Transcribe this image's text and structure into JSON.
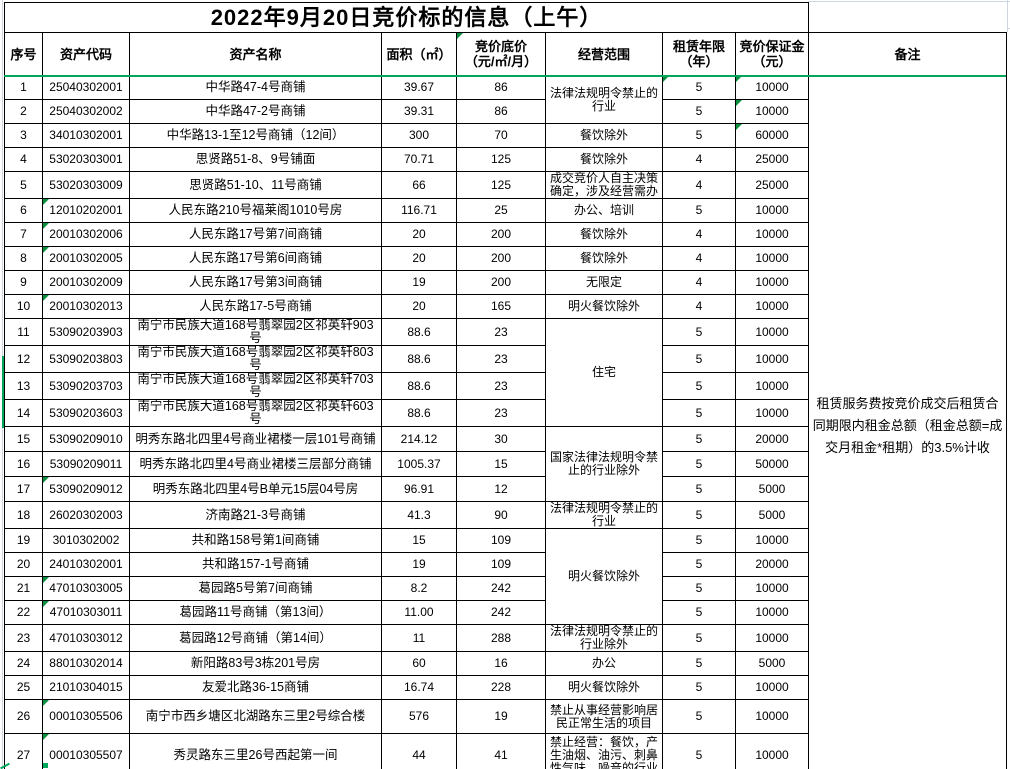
{
  "title": "2022年9月20日竞价标的信息（上午）",
  "columns": {
    "no": "序号",
    "code": "资产代码",
    "name": "资产名称",
    "area": "面积（㎡）",
    "price": "竞价底价\n（元/㎡/月）",
    "scope": "经营范围",
    "lease": "租赁年限\n（年）",
    "deposit": "竞价保证金\n（元）",
    "remark": "备注"
  },
  "remark": "租赁服务费按竞价成交后租赁合同期限内租金总额（租金总额=成交月租金*租期）的3.5%计收",
  "colors": {
    "table_border": "#000000",
    "pane_line_green": "#00a65a",
    "indicator_green": "#0c8f3f",
    "gridline_gray": "#cfd6e2"
  },
  "rows": [
    {
      "no": "1",
      "code": "25040302001",
      "name": "中华路47-4号商铺",
      "area": "39.67",
      "price": "86",
      "scope": "法律法规明令禁止的行业",
      "scope_span": 2,
      "lease": "5",
      "deposit": "10000",
      "marks": [
        "lease",
        "deposit"
      ]
    },
    {
      "no": "2",
      "code": "25040302002",
      "name": "中华路47-2号商铺",
      "area": "39.31",
      "price": "86",
      "lease": "5",
      "deposit": "10000",
      "marks": [
        "deposit"
      ]
    },
    {
      "no": "3",
      "code": "34010302001",
      "name": "中华路13-1至12号商铺（12间）",
      "area": "300",
      "price": "70",
      "scope": "餐饮除外",
      "lease": "5",
      "deposit": "60000",
      "marks": [
        "deposit"
      ]
    },
    {
      "no": "4",
      "code": "53020303001",
      "name": "思贤路51-8、9号铺面",
      "area": "70.71",
      "price": "125",
      "scope": "餐饮除外",
      "lease": "4",
      "deposit": "25000"
    },
    {
      "no": "5",
      "code": "53020303009",
      "name": "思贤路51-10、11号商铺",
      "area": "66",
      "price": "125",
      "scope": "成交竞价人自主决策确定，涉及经营需办",
      "clip": true,
      "lease": "4",
      "deposit": "25000"
    },
    {
      "no": "6",
      "code": "12010202001",
      "name": "人民东路210号福莱阁1010号房",
      "area": "116.71",
      "price": "25",
      "scope": "办公、培训",
      "lease": "5",
      "deposit": "10000",
      "marks": [
        "code"
      ]
    },
    {
      "no": "7",
      "code": "20010302006",
      "name": "人民东路17号第7间商铺",
      "area": "20",
      "price": "200",
      "scope": "餐饮除外",
      "lease": "4",
      "deposit": "10000",
      "marks": [
        "code"
      ]
    },
    {
      "no": "8",
      "code": "20010302005",
      "name": "人民东路17号第6间商铺",
      "area": "20",
      "price": "200",
      "scope": "餐饮除外",
      "lease": "4",
      "deposit": "10000",
      "marks": [
        "code"
      ]
    },
    {
      "no": "9",
      "code": "20010302009",
      "name": "人民东路17号第3间商铺",
      "area": "19",
      "price": "200",
      "scope": "无限定",
      "lease": "4",
      "deposit": "10000"
    },
    {
      "no": "10",
      "code": "20010302013",
      "name": "人民东路17-5号商铺",
      "area": "20",
      "price": "165",
      "scope": "明火餐饮除外",
      "lease": "4",
      "deposit": "10000",
      "marks": [
        "code"
      ]
    },
    {
      "no": "11",
      "code": "53090203903",
      "name": "南宁市民族大道168号翡翠园2区祁英轩903号",
      "area": "88.6",
      "price": "23",
      "scope": "住宅",
      "scope_span": 4,
      "lease": "5",
      "deposit": "10000"
    },
    {
      "no": "12",
      "code": "53090203803",
      "name": "南宁市民族大道168号翡翠园2区祁英轩803号",
      "area": "88.6",
      "price": "23",
      "lease": "5",
      "deposit": "10000"
    },
    {
      "no": "13",
      "code": "53090203703",
      "name": "南宁市民族大道168号翡翠园2区祁英轩703号",
      "area": "88.6",
      "price": "23",
      "lease": "5",
      "deposit": "10000"
    },
    {
      "no": "14",
      "code": "53090203603",
      "name": "南宁市民族大道168号翡翠园2区祁英轩603号",
      "area": "88.6",
      "price": "23",
      "lease": "5",
      "deposit": "10000"
    },
    {
      "no": "15",
      "code": "53090209010",
      "name": "明秀东路北四里4号商业裙楼一层101号商铺",
      "area": "214.12",
      "price": "30",
      "scope": "国家法律法规明令禁止的行业除外",
      "scope_span": 3,
      "lease": "5",
      "deposit": "20000"
    },
    {
      "no": "16",
      "code": "53090209011",
      "name": "明秀东路北四里4号商业裙楼三层部分商铺",
      "area": "1005.37",
      "price": "15",
      "lease": "5",
      "deposit": "50000"
    },
    {
      "no": "17",
      "code": "53090209012",
      "name": "明秀东路北四里4号B单元15层04号房",
      "area": "96.91",
      "price": "12",
      "lease": "5",
      "deposit": "5000",
      "marks": [
        "code"
      ]
    },
    {
      "no": "18",
      "code": "26020302003",
      "name": "济南路21-3号商铺",
      "area": "41.3",
      "price": "90",
      "scope": "法律法规明令禁止的行业",
      "lease": "5",
      "deposit": "5000"
    },
    {
      "no": "19",
      "code": "3010302002",
      "name": "共和路158号第1间商铺",
      "area": "15",
      "price": "109",
      "scope": "明火餐饮除外",
      "scope_span": 4,
      "lease": "5",
      "deposit": "10000"
    },
    {
      "no": "20",
      "code": "24010302001",
      "name": "共和路157-1号商铺",
      "area": "19",
      "price": "109",
      "lease": "5",
      "deposit": "20000"
    },
    {
      "no": "21",
      "code": "47010303005",
      "name": "葛园路5号第7间商铺",
      "area": "8.2",
      "price": "242",
      "lease": "5",
      "deposit": "10000",
      "marks": [
        "code"
      ]
    },
    {
      "no": "22",
      "code": "47010303011",
      "name": "葛园路11号商铺（第13间）",
      "area": "11.00",
      "price": "242",
      "lease": "5",
      "deposit": "10000",
      "marks": [
        "code"
      ]
    },
    {
      "no": "23",
      "code": "47010303012",
      "name": "葛园路12号商铺（第14间）",
      "area": "11",
      "price": "288",
      "scope": "法律法规明令禁止的行业除外",
      "clip": true,
      "lease": "5",
      "deposit": "10000"
    },
    {
      "no": "24",
      "code": "88010302014",
      "name": "新阳路83号3栋201号房",
      "area": "60",
      "price": "16",
      "scope": "办公",
      "lease": "5",
      "deposit": "5000"
    },
    {
      "no": "25",
      "code": "21010304015",
      "name": "友爱北路36-15商铺",
      "area": "16.74",
      "price": "228",
      "scope": "明火餐饮除外",
      "lease": "5",
      "deposit": "10000"
    },
    {
      "no": "26",
      "code": "00010305506",
      "name": "南宁市西乡塘区北湖路东三里2号综合楼",
      "area": "576",
      "price": "19",
      "scope": "禁止从事经营影响居民正常生活的项目",
      "lease": "5",
      "deposit": "10000",
      "marks": [
        "code"
      ]
    },
    {
      "no": "27",
      "code": "00010305507",
      "name": "秀灵路东三里26号西起第一间",
      "area": "44",
      "price": "41",
      "scope": "禁止经营：餐饮，产生油烟、油污、刺鼻性气味、噪音的行业",
      "lease": "5",
      "deposit": "10000",
      "marks": [
        "code"
      ]
    }
  ]
}
